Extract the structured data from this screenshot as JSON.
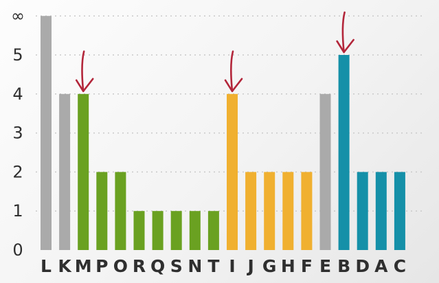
{
  "chart_data": {
    "type": "bar",
    "categories": [
      "L",
      "K",
      "M",
      "P",
      "O",
      "R",
      "Q",
      "S",
      "N",
      "T",
      "I",
      "J",
      "G",
      "H",
      "F",
      "E",
      "B",
      "D",
      "A",
      "C"
    ],
    "values": [
      "∞",
      4,
      4,
      2,
      2,
      1,
      1,
      1,
      1,
      1,
      4,
      2,
      2,
      2,
      2,
      4,
      5,
      2,
      2,
      2
    ],
    "plot_values": [
      6,
      4,
      4,
      2,
      2,
      1,
      1,
      1,
      1,
      1,
      4,
      2,
      2,
      2,
      2,
      4,
      5,
      2,
      2,
      2
    ],
    "bar_colors": [
      "#aaaaaa",
      "#aaaaaa",
      "#6aa121",
      "#6aa121",
      "#6aa121",
      "#6aa121",
      "#6aa121",
      "#6aa121",
      "#6aa121",
      "#6aa121",
      "#f0b030",
      "#f0b030",
      "#f0b030",
      "#f0b030",
      "#f0b030",
      "#aaaaaa",
      "#1590a8",
      "#1590a8",
      "#1590a8",
      "#1590a8"
    ],
    "y_tick_labels": [
      "0",
      "1",
      "2",
      "3",
      "4",
      "5",
      "∞"
    ],
    "y_tick_values": [
      0,
      1,
      2,
      3,
      4,
      5,
      6
    ],
    "ylim": [
      0,
      6
    ],
    "grid": true,
    "annotations": [
      {
        "type": "handwritten-arrow",
        "category": "M",
        "color": "#b3263a"
      },
      {
        "type": "handwritten-arrow",
        "category": "I",
        "color": "#b3263a"
      },
      {
        "type": "handwritten-arrow",
        "category": "B",
        "color": "#b3263a"
      }
    ],
    "title": "",
    "xlabel": "",
    "ylabel": ""
  }
}
